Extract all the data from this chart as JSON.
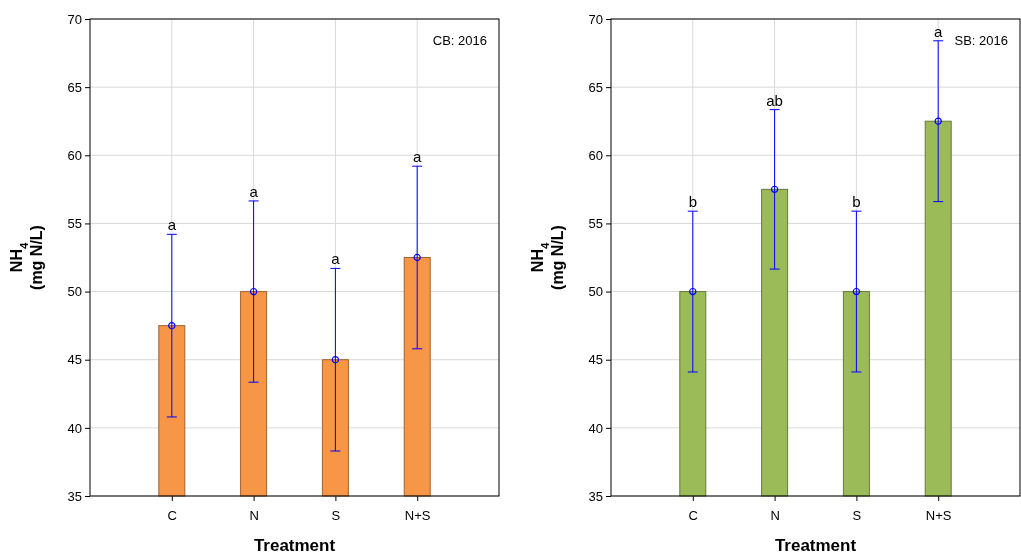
{
  "chart_data": [
    {
      "type": "bar",
      "categories": [
        "C",
        "N",
        "S",
        "N+S"
      ],
      "xlabel": "Treatment",
      "ylabel": "NH$_{4}$\n(mg N/L)",
      "ylim": [
        35,
        70
      ],
      "yticks": [
        35,
        40,
        45,
        50,
        55,
        60,
        65,
        70
      ],
      "grid": true,
      "series": [
        {
          "type": "bar",
          "color": "#f79646",
          "values": [
            47.5,
            50,
            45,
            52.5
          ],
          "errors": [
            6.7,
            6.65,
            6.7,
            6.7
          ]
        },
        {
          "type": "scatter",
          "x": [
            "C",
            "N",
            "S",
            "N+S"
          ],
          "color": "#0000ff",
          "marker": "circle",
          "values": [
            47.5,
            50,
            45,
            52.5
          ]
        }
      ],
      "annotations": [
        "CB: 2016",
        {
          "text": "a",
          "x": "C",
          "y": 54.2
        },
        {
          "text": "a",
          "x": "N",
          "y": 56.65
        },
        {
          "text": "a",
          "x": "S",
          "y": 51.7
        },
        {
          "text": "a",
          "x": "N+S",
          "y": 59.2
        }
      ]
    },
    {
      "type": "bar",
      "categories": [
        "C",
        "N",
        "S",
        "N+S"
      ],
      "xlabel": "Treatment",
      "ylabel": "NH$_{4}$\n(mg N/L)",
      "ylim": [
        35,
        70
      ],
      "yticks": [
        35,
        40,
        45,
        50,
        55,
        60,
        65,
        70
      ],
      "grid": true,
      "series": [
        {
          "type": "bar",
          "color": "#9bbb59",
          "values": [
            50,
            57.5,
            50,
            62.5
          ],
          "errors": [
            5.9,
            5.85,
            5.9,
            5.9
          ]
        },
        {
          "type": "scatter",
          "x": [
            "C",
            "N",
            "S",
            "N+S"
          ],
          "color": "#0000ff",
          "marker": "circle",
          "values": [
            50,
            57.5,
            50,
            62.5
          ]
        }
      ],
      "annotations": [
        "SB: 2016",
        {
          "text": "b",
          "x": "C",
          "y": 55.9
        },
        {
          "text": "ab",
          "x": "N",
          "y": 63.35
        },
        {
          "text": "b",
          "x": "S",
          "y": 55.9
        },
        {
          "text": "a",
          "x": "N+S",
          "y": 68.4
        }
      ]
    }
  ]
}
